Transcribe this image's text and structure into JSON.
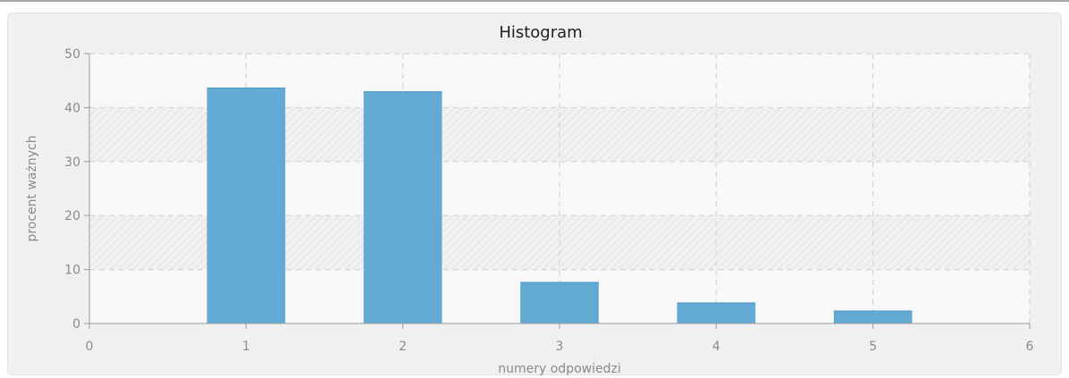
{
  "chart_data": {
    "type": "bar",
    "title": "Histogram",
    "xlabel": "numery odpowiedzi",
    "ylabel": "procent ważnych",
    "x": [
      1,
      2,
      3,
      4,
      5
    ],
    "values": [
      43.7,
      43.0,
      7.7,
      3.9,
      2.4
    ],
    "xlim": [
      0,
      6
    ],
    "ylim": [
      0,
      50
    ],
    "xticks": [
      "0",
      "1",
      "2",
      "3",
      "4",
      "5",
      "6"
    ],
    "yticks": [
      "0",
      "10",
      "20",
      "30",
      "40",
      "50"
    ],
    "grid": true,
    "legend": "none",
    "bar_color": "#62a9d4",
    "plot_background": "#f8f8f8",
    "band_color": "#e8e8e8"
  }
}
